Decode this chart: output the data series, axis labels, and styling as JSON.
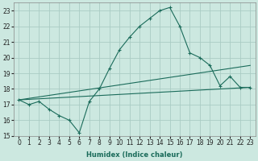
{
  "xlabel": "Humidex (Indice chaleur)",
  "bg_color": "#cce8e0",
  "grid_color": "#aaccC4",
  "line_color": "#1a6b5a",
  "xlim": [
    -0.5,
    23.5
  ],
  "ylim": [
    15,
    23.5
  ],
  "yticks": [
    15,
    16,
    17,
    18,
    19,
    20,
    21,
    22,
    23
  ],
  "xticks": [
    0,
    1,
    2,
    3,
    4,
    5,
    6,
    7,
    8,
    9,
    10,
    11,
    12,
    13,
    14,
    15,
    16,
    17,
    18,
    19,
    20,
    21,
    22,
    23
  ],
  "line1_x": [
    0,
    1,
    2,
    3,
    4,
    5,
    6,
    7,
    8,
    9,
    10,
    11,
    12,
    13,
    14,
    15,
    16,
    17,
    18,
    19,
    20,
    21,
    22,
    23
  ],
  "line1_y": [
    17.3,
    17.0,
    17.2,
    16.7,
    16.3,
    16.0,
    15.2,
    17.2,
    18.0,
    19.3,
    20.5,
    21.3,
    22.0,
    22.5,
    23.0,
    23.2,
    22.0,
    20.3,
    20.0,
    19.5,
    18.2,
    18.8,
    18.1,
    18.1
  ],
  "line2_x": [
    0,
    23
  ],
  "line2_y": [
    17.3,
    19.5
  ],
  "line3_x": [
    0,
    23
  ],
  "line3_y": [
    17.3,
    18.1
  ],
  "xlabel_fontsize": 6,
  "xlabel_color": "#1a6b5a",
  "tick_labelsize": 5.5
}
